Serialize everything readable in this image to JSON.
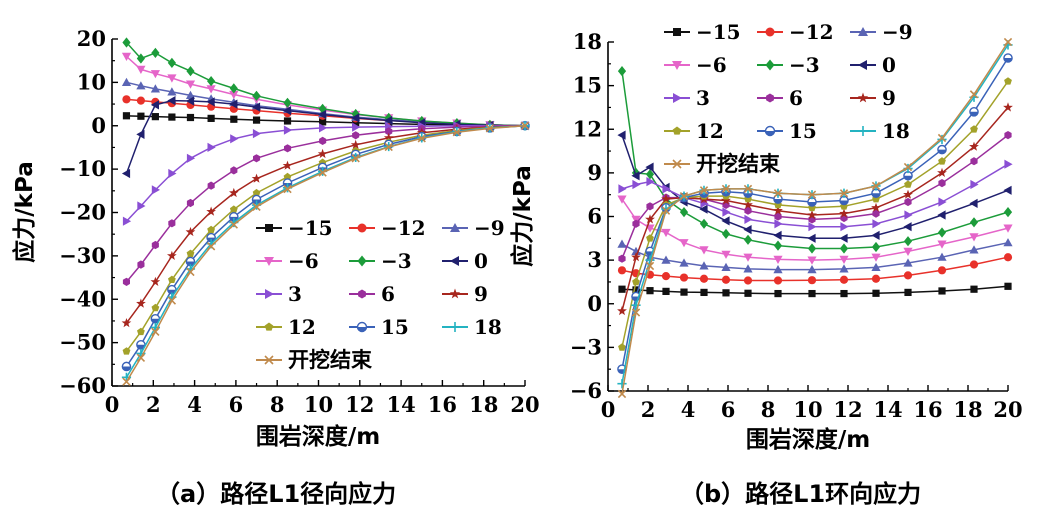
{
  "series_styles": [
    {
      "name": "-15",
      "label": "−15",
      "color": "#111111",
      "marker": "square"
    },
    {
      "name": "-12",
      "label": "−12",
      "color": "#e8312a",
      "marker": "circle"
    },
    {
      "name": "-9",
      "label": "−9",
      "color": "#5a64b4",
      "marker": "triangle"
    },
    {
      "name": "-6",
      "label": "−6",
      "color": "#e565c9",
      "marker": "triangle-down"
    },
    {
      "name": "-3",
      "label": "−3",
      "color": "#1c9c3a",
      "marker": "diamond"
    },
    {
      "name": "0",
      "label": "0",
      "color": "#20206e",
      "marker": "triangle-left"
    },
    {
      "name": "3",
      "label": "3",
      "color": "#8a4fd4",
      "marker": "triangle-right"
    },
    {
      "name": "6",
      "label": "6",
      "color": "#9a2f9c",
      "marker": "hexagon"
    },
    {
      "name": "9",
      "label": "9",
      "color": "#a7261e",
      "marker": "star"
    },
    {
      "name": "12",
      "label": "12",
      "color": "#a3a22a",
      "marker": "pentagon"
    },
    {
      "name": "15",
      "label": "15",
      "color": "#3a62b8",
      "marker": "half-circle"
    },
    {
      "name": "18",
      "label": "18",
      "color": "#24b3c1",
      "marker": "plus"
    },
    {
      "name": "开挖结束",
      "label": "开挖结束",
      "color": "#c08a4c",
      "marker": "x"
    }
  ],
  "chart_data": [
    {
      "type": "line",
      "caption": "（a）路径L1径向应力",
      "xlabel": "围岩深度/m",
      "ylabel": "应力/kPa",
      "xlim": [
        0,
        20
      ],
      "ylim": [
        -60,
        20
      ],
      "xticks": [
        0,
        2,
        4,
        6,
        8,
        10,
        12,
        14,
        16,
        18,
        20
      ],
      "yticks": [
        -60,
        -50,
        -40,
        -30,
        -20,
        -10,
        0,
        10,
        20
      ],
      "legend_position": "lower-right",
      "x": [
        0.7,
        1.4,
        2.1,
        2.9,
        3.8,
        4.8,
        5.9,
        7.0,
        8.5,
        10.2,
        11.8,
        13.4,
        15.0,
        16.7,
        18.3,
        20.0
      ],
      "series": [
        {
          "name": "-15",
          "values": [
            2.3,
            2.2,
            2.1,
            2.0,
            1.9,
            1.7,
            1.5,
            1.3,
            1.1,
            0.9,
            0.7,
            0.5,
            0.3,
            0.2,
            0.1,
            0.0
          ]
        },
        {
          "name": "-12",
          "values": [
            6.1,
            5.8,
            5.5,
            5.2,
            4.8,
            4.4,
            3.9,
            3.5,
            2.9,
            2.3,
            1.7,
            1.2,
            0.8,
            0.4,
            0.2,
            0.0
          ]
        },
        {
          "name": "-9",
          "values": [
            10.0,
            9.2,
            8.5,
            7.8,
            7.0,
            6.2,
            5.4,
            4.6,
            3.8,
            2.8,
            2.0,
            1.4,
            0.9,
            0.5,
            0.2,
            0.0
          ]
        },
        {
          "name": "-6",
          "values": [
            16.0,
            13.0,
            12.0,
            11.0,
            9.6,
            8.5,
            7.2,
            6.1,
            4.8,
            3.6,
            2.6,
            1.8,
            1.1,
            0.6,
            0.2,
            0.0
          ]
        },
        {
          "name": "-3",
          "values": [
            19.2,
            15.5,
            16.8,
            14.5,
            12.6,
            10.3,
            8.6,
            6.9,
            5.3,
            3.9,
            2.7,
            1.8,
            1.1,
            0.6,
            0.2,
            0.0
          ]
        },
        {
          "name": "0",
          "values": [
            -11.0,
            -2.0,
            4.8,
            5.8,
            5.7,
            5.5,
            5.0,
            4.3,
            3.5,
            2.6,
            1.8,
            1.2,
            0.7,
            0.3,
            0.1,
            0.0
          ]
        },
        {
          "name": "3",
          "values": [
            -22.0,
            -18.5,
            -14.8,
            -11.0,
            -7.5,
            -5.0,
            -3.0,
            -1.8,
            -1.0,
            -0.5,
            -0.3,
            -0.2,
            -0.1,
            0.0,
            0.0,
            0.0
          ]
        },
        {
          "name": "6",
          "values": [
            -36.0,
            -32.0,
            -27.5,
            -22.5,
            -17.8,
            -13.8,
            -10.3,
            -7.5,
            -5.2,
            -3.5,
            -2.2,
            -1.3,
            -0.7,
            -0.3,
            -0.1,
            0.0
          ]
        },
        {
          "name": "9",
          "values": [
            -45.5,
            -41.0,
            -36.0,
            -30.0,
            -24.5,
            -19.8,
            -15.5,
            -12.2,
            -9.2,
            -6.5,
            -4.4,
            -2.8,
            -1.6,
            -0.8,
            -0.3,
            0.0
          ]
        },
        {
          "name": "12",
          "values": [
            -52.0,
            -47.5,
            -42.0,
            -35.5,
            -29.5,
            -24.0,
            -19.3,
            -15.5,
            -11.8,
            -8.5,
            -5.8,
            -3.8,
            -2.2,
            -1.1,
            -0.4,
            0.0
          ]
        },
        {
          "name": "15",
          "values": [
            -55.5,
            -50.5,
            -44.5,
            -37.8,
            -31.3,
            -25.8,
            -21.0,
            -17.0,
            -13.2,
            -9.6,
            -6.6,
            -4.3,
            -2.5,
            -1.3,
            -0.5,
            0.0
          ]
        },
        {
          "name": "18",
          "values": [
            -58.0,
            -52.5,
            -46.5,
            -39.5,
            -33.0,
            -27.2,
            -22.3,
            -18.3,
            -14.3,
            -10.5,
            -7.3,
            -4.8,
            -2.8,
            -1.4,
            -0.5,
            0.0
          ]
        },
        {
          "name": "开挖结束",
          "values": [
            -59.0,
            -53.5,
            -47.5,
            -40.3,
            -33.7,
            -27.8,
            -22.8,
            -18.7,
            -14.6,
            -10.8,
            -7.5,
            -4.9,
            -2.9,
            -1.5,
            -0.6,
            0.0
          ]
        }
      ]
    },
    {
      "type": "line",
      "caption": "（b）路径L1环向应力",
      "xlabel": "围岩深度/m",
      "ylabel": "应力/kPa",
      "xlim": [
        0,
        20
      ],
      "ylim": [
        -6,
        18
      ],
      "xticks": [
        0,
        2,
        4,
        6,
        8,
        10,
        12,
        14,
        16,
        18,
        20
      ],
      "yticks": [
        -6,
        -3,
        0,
        3,
        6,
        9,
        12,
        15,
        18
      ],
      "legend_position": "top-left",
      "x": [
        0.7,
        1.4,
        2.1,
        2.9,
        3.8,
        4.8,
        5.9,
        7.0,
        8.5,
        10.2,
        11.8,
        13.4,
        15.0,
        16.7,
        18.3,
        20.0
      ],
      "series": [
        {
          "name": "-15",
          "values": [
            1.0,
            0.95,
            0.9,
            0.85,
            0.8,
            0.78,
            0.75,
            0.72,
            0.7,
            0.7,
            0.7,
            0.72,
            0.78,
            0.88,
            1.0,
            1.2
          ]
        },
        {
          "name": "-12",
          "values": [
            2.3,
            2.1,
            2.0,
            1.9,
            1.8,
            1.72,
            1.65,
            1.6,
            1.6,
            1.62,
            1.65,
            1.72,
            1.95,
            2.3,
            2.7,
            3.2
          ]
        },
        {
          "name": "-9",
          "values": [
            4.1,
            3.6,
            3.2,
            3.0,
            2.8,
            2.6,
            2.5,
            2.4,
            2.35,
            2.35,
            2.4,
            2.5,
            2.8,
            3.2,
            3.7,
            4.2
          ]
        },
        {
          "name": "-6",
          "values": [
            7.2,
            5.8,
            5.2,
            4.9,
            4.2,
            3.7,
            3.4,
            3.2,
            3.05,
            3.0,
            3.05,
            3.2,
            3.6,
            4.1,
            4.6,
            5.2
          ]
        },
        {
          "name": "-3",
          "values": [
            16.0,
            9.0,
            8.9,
            7.2,
            6.3,
            5.5,
            4.8,
            4.4,
            4.0,
            3.8,
            3.8,
            3.9,
            4.3,
            4.9,
            5.6,
            6.3
          ]
        },
        {
          "name": "0",
          "values": [
            11.6,
            8.8,
            9.4,
            8.0,
            7.0,
            6.5,
            5.7,
            5.1,
            4.7,
            4.5,
            4.5,
            4.7,
            5.3,
            6.1,
            6.9,
            7.8
          ]
        },
        {
          "name": "3",
          "values": [
            7.9,
            8.2,
            8.4,
            7.9,
            7.3,
            6.9,
            6.3,
            5.8,
            5.5,
            5.3,
            5.3,
            5.5,
            6.1,
            7.0,
            8.2,
            9.6
          ]
        },
        {
          "name": "6",
          "values": [
            3.1,
            5.5,
            6.7,
            7.3,
            7.3,
            7.2,
            6.8,
            6.4,
            6.0,
            5.8,
            5.9,
            6.2,
            7.0,
            8.3,
            9.8,
            11.6
          ]
        },
        {
          "name": "9",
          "values": [
            -0.5,
            3.2,
            5.8,
            7.2,
            7.3,
            7.2,
            7.1,
            6.8,
            6.4,
            6.1,
            6.2,
            6.6,
            7.5,
            9.0,
            10.8,
            13.5
          ]
        },
        {
          "name": "12",
          "values": [
            -3.0,
            1.5,
            4.5,
            6.8,
            7.3,
            7.4,
            7.4,
            7.2,
            6.8,
            6.6,
            6.7,
            7.2,
            8.2,
            9.8,
            12.0,
            15.3
          ]
        },
        {
          "name": "15",
          "values": [
            -4.5,
            0.5,
            3.6,
            6.6,
            7.3,
            7.6,
            7.7,
            7.6,
            7.2,
            7.0,
            7.1,
            7.6,
            8.8,
            10.6,
            13.2,
            16.9
          ]
        },
        {
          "name": "18",
          "values": [
            -5.5,
            -0.1,
            3.0,
            6.5,
            7.4,
            7.8,
            7.9,
            7.9,
            7.6,
            7.5,
            7.6,
            8.1,
            9.3,
            11.3,
            14.2,
            17.8
          ]
        },
        {
          "name": "开挖结束",
          "values": [
            -6.2,
            -0.6,
            2.6,
            6.4,
            7.4,
            7.8,
            7.9,
            7.9,
            7.6,
            7.5,
            7.6,
            8.1,
            9.4,
            11.4,
            14.4,
            18.0
          ]
        }
      ]
    }
  ]
}
